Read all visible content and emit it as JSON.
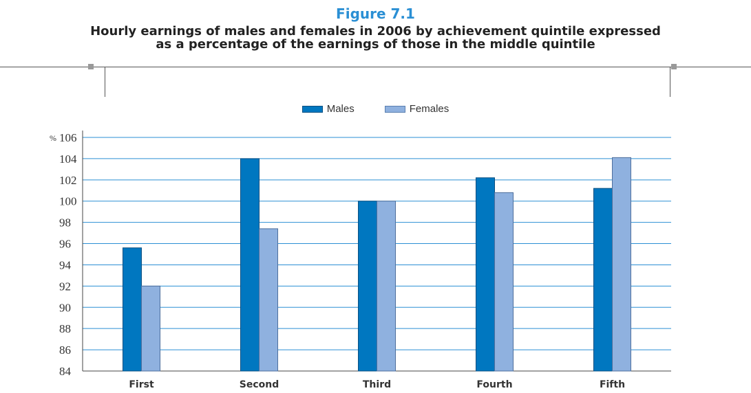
{
  "figure": {
    "label": "Figure 7.1",
    "title_line1": "Hourly earnings of males and females in 2006 by achievement quintile expressed",
    "title_line2": "as a percentage of the earnings of those in the middle quintile"
  },
  "colors": {
    "males": "#0077c0",
    "females": "#8fb1df",
    "gridline": "#2a8fd4",
    "axis": "#444444",
    "title_accent": "#2a8fd4"
  },
  "chart_data": {
    "type": "bar",
    "title": "Hourly earnings of males and females in 2006 by achievement quintile expressed as a percentage of the earnings of those in the middle quintile",
    "xlabel": "",
    "ylabel": "",
    "y_unit": "%",
    "categories": [
      "First",
      "Second",
      "Third",
      "Fourth",
      "Fifth"
    ],
    "series": [
      {
        "name": "Males",
        "values": [
          95.6,
          104.0,
          100.0,
          102.2,
          101.2
        ]
      },
      {
        "name": "Females",
        "values": [
          92.0,
          97.4,
          100.0,
          100.8,
          104.1
        ]
      }
    ],
    "ylim": [
      84,
      106
    ],
    "yticks": [
      "84",
      "86",
      "88",
      "90",
      "92",
      "94",
      "96",
      "98",
      "100",
      "102",
      "104",
      "106"
    ],
    "grid": true,
    "legend_position": "top-center"
  }
}
